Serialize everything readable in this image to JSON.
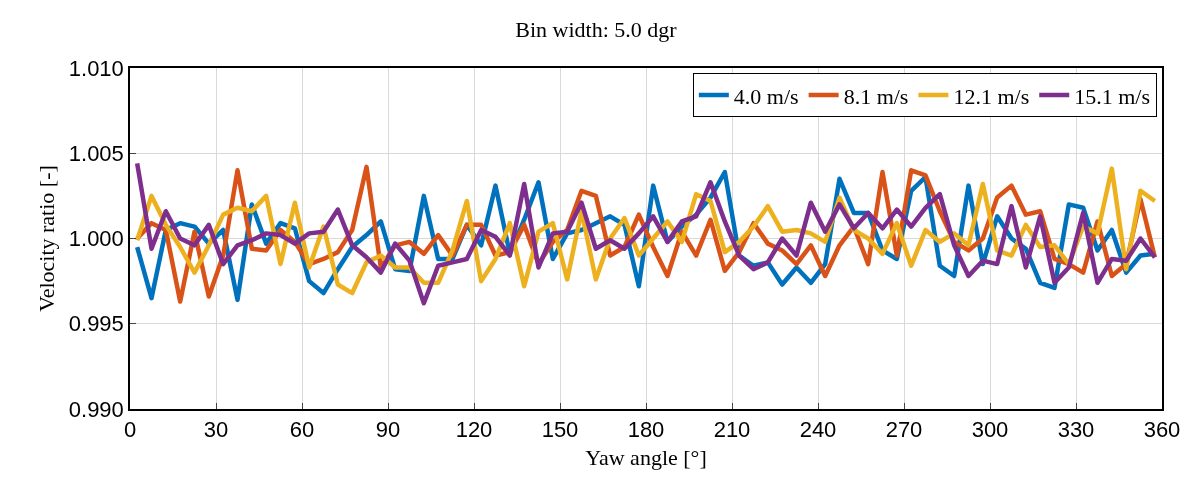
{
  "chart_data": {
    "type": "line",
    "title": "Bin width: 5.0 dgr",
    "xlabel": "Yaw angle [°]",
    "ylabel": "Velocity ratio [-]",
    "x": [
      2.5,
      7.5,
      12.5,
      17.5,
      22.5,
      27.5,
      32.5,
      37.5,
      42.5,
      47.5,
      52.5,
      57.5,
      62.5,
      67.5,
      72.5,
      77.5,
      82.5,
      87.5,
      92.5,
      97.5,
      102.5,
      107.5,
      112.5,
      117.5,
      122.5,
      127.5,
      132.5,
      137.5,
      142.5,
      147.5,
      152.5,
      157.5,
      162.5,
      167.5,
      172.5,
      177.5,
      182.5,
      187.5,
      192.5,
      197.5,
      202.5,
      207.5,
      212.5,
      217.5,
      222.5,
      227.5,
      232.5,
      237.5,
      242.5,
      247.5,
      252.5,
      257.5,
      262.5,
      267.5,
      272.5,
      277.5,
      282.5,
      287.5,
      292.5,
      297.5,
      302.5,
      307.5,
      312.5,
      317.5,
      322.5,
      327.5,
      332.5,
      337.5,
      342.5,
      347.5,
      352.5,
      357.5
    ],
    "series": [
      {
        "name": "4.0 m/s",
        "color": "#0072bd",
        "values": [
          0.9995,
          0.9965,
          1.0005,
          1.0009,
          1.0007,
          0.9997,
          1.0005,
          0.9964,
          1.002,
          0.9997,
          1.0009,
          1.0006,
          0.9975,
          0.9968,
          0.9982,
          0.9995,
          1.0002,
          1.001,
          0.9982,
          0.9981,
          1.0025,
          0.9988,
          0.9988,
          1.0008,
          0.9996,
          1.0031,
          0.9991,
          1.0011,
          1.0033,
          0.9988,
          1.0003,
          1.0005,
          1.0009,
          1.0013,
          1.0008,
          0.9972,
          1.0031,
          0.9998,
          1.0007,
          1.0014,
          1.0024,
          1.0039,
          0.999,
          0.9984,
          0.9986,
          0.9973,
          0.9983,
          0.9974,
          0.9985,
          1.0035,
          1.0015,
          1.0015,
          0.9993,
          0.9988,
          1.0028,
          1.0036,
          0.9984,
          0.9978,
          1.0031,
          0.9985,
          1.0013,
          1.0,
          0.9994,
          0.9974,
          0.9971,
          1.002,
          1.0018,
          0.9993,
          1.0005,
          0.998,
          0.999,
          0.9991
        ]
      },
      {
        "name": "8.1 m/s",
        "color": "#d95319",
        "values": [
          1.0,
          1.0009,
          1.0005,
          0.9963,
          1.0004,
          0.9966,
          0.999,
          1.004,
          0.9994,
          0.9993,
          1.0005,
          0.9998,
          0.9985,
          0.9988,
          0.9992,
          1.0005,
          1.0042,
          0.9983,
          0.9996,
          0.9998,
          0.9991,
          1.0002,
          0.999,
          1.0008,
          1.0008,
          0.999,
          0.9992,
          1.0008,
          0.9985,
          0.9998,
          1.0005,
          1.0028,
          1.0025,
          0.999,
          0.9995,
          1.0014,
          0.9995,
          0.9978,
          1.0004,
          0.999,
          1.0011,
          0.9981,
          0.9992,
          1.0009,
          0.9997,
          0.9993,
          0.9985,
          0.9996,
          0.9978,
          0.9996,
          1.0007,
          0.9985,
          1.0039,
          0.999,
          1.004,
          1.0037,
          1.0016,
          0.9998,
          0.9993,
          1.0,
          1.0024,
          1.0031,
          1.0014,
          1.0016,
          0.9988,
          0.9985,
          0.998,
          1.001,
          0.9978,
          0.9985,
          1.0023,
          0.9989
        ]
      },
      {
        "name": "12.1 m/s",
        "color": "#edb120",
        "values": [
          0.9999,
          1.0025,
          1.0008,
          0.9995,
          0.998,
          0.9996,
          1.0014,
          1.0018,
          1.0016,
          1.0025,
          0.9985,
          1.0021,
          0.9983,
          1.0007,
          0.9973,
          0.9968,
          0.9986,
          0.999,
          0.9983,
          0.9983,
          0.9974,
          0.9974,
          0.9993,
          1.0022,
          0.9975,
          0.9988,
          1.0009,
          0.9972,
          1.0004,
          1.0009,
          0.9976,
          1.0016,
          0.9976,
          1.0,
          1.0012,
          0.999,
          1.0,
          1.001,
          0.9998,
          1.0026,
          1.0022,
          0.9992,
          0.9998,
          1.0007,
          1.0019,
          1.0004,
          1.0005,
          1.0003,
          0.9998,
          1.0024,
          1.0005,
          1.0,
          0.9991,
          1.0009,
          0.9984,
          1.0005,
          0.9998,
          1.0003,
          0.9996,
          1.0032,
          0.9993,
          0.999,
          1.0008,
          0.9995,
          0.9996,
          0.9985,
          1.0007,
          1.0003,
          1.0041,
          0.9982,
          1.0028,
          1.0022
        ]
      },
      {
        "name": "15.1 m/s",
        "color": "#7e2f8e",
        "values": [
          1.0044,
          0.9994,
          1.0016,
          1.0,
          0.9996,
          1.0008,
          0.9985,
          0.9996,
          0.9999,
          1.0003,
          1.0002,
          0.9997,
          1.0003,
          1.0004,
          1.0017,
          0.9996,
          0.9989,
          0.998,
          0.9997,
          0.9987,
          0.9962,
          0.9984,
          0.9986,
          0.9988,
          1.0005,
          1.0001,
          0.999,
          1.0032,
          0.9983,
          1.0003,
          1.0004,
          1.0021,
          0.9994,
          0.9999,
          0.9994,
          1.0003,
          1.0013,
          0.9998,
          1.001,
          1.0013,
          1.0033,
          1.001,
          0.999,
          0.9982,
          0.9986,
          1.0,
          0.999,
          1.0021,
          1.0004,
          1.002,
          1.0006,
          1.0015,
          1.0006,
          1.0017,
          1.0007,
          1.0018,
          1.0026,
          0.9996,
          0.9978,
          0.9987,
          0.9985,
          1.0019,
          0.9983,
          1.0013,
          0.9974,
          0.9983,
          1.0015,
          0.9974,
          0.9988,
          0.9987,
          1.0,
          0.9989
        ]
      }
    ],
    "xlim": [
      0,
      360
    ],
    "xticks": [
      0,
      30,
      60,
      90,
      120,
      150,
      180,
      210,
      240,
      270,
      300,
      330,
      360
    ],
    "ylim": [
      0.99,
      1.01
    ],
    "yticks": [
      {
        "value": 0.99,
        "label": "0.990"
      },
      {
        "value": 0.995,
        "label": "0.995"
      },
      {
        "value": 1.0,
        "label": "1.000"
      },
      {
        "value": 1.005,
        "label": "1.005"
      },
      {
        "value": 1.01,
        "label": "1.010"
      }
    ],
    "grid": true,
    "legend": "top right",
    "line_style": "solid",
    "marker": "none"
  }
}
